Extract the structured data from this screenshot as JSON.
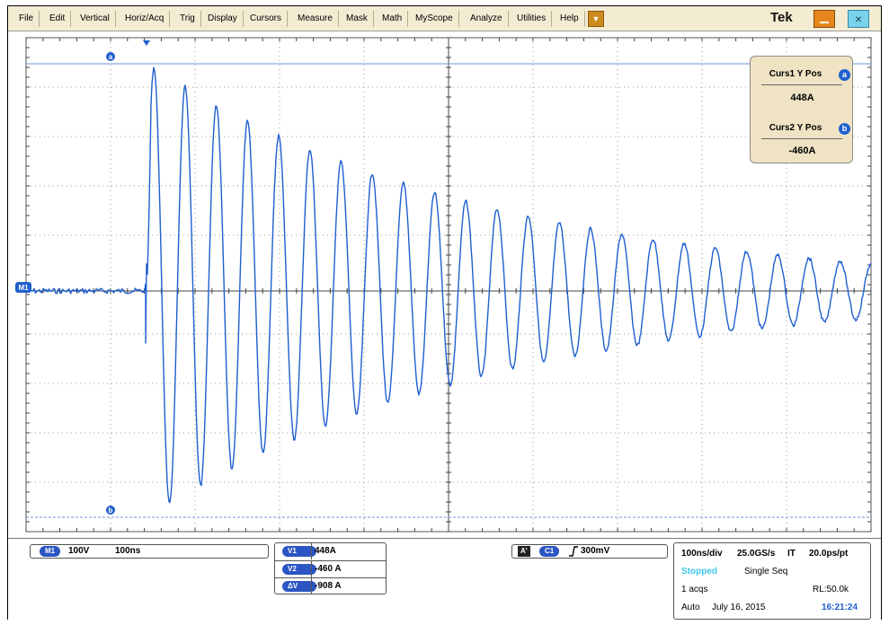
{
  "menu": {
    "items": [
      "File",
      "Edit",
      "Vertical",
      "Horiz/Acq",
      "Trig",
      "Display",
      "Cursors",
      "Measure",
      "Mask",
      "Math",
      "MyScope",
      "Analyze",
      "Utilities",
      "Help"
    ],
    "arrow_icon": "dropdown-triangle-icon"
  },
  "brand": "Tek",
  "window_buttons": {
    "minimize_icon": "minimize-icon",
    "close_icon": "close-icon",
    "close_glyph": "×"
  },
  "waveform": {
    "color": "#1f5fcf",
    "math_marker_label": "M1",
    "cursor_a_label": "a",
    "cursor_b_label": "b"
  },
  "cursor_panel": {
    "curs1_label": "Curs1 Y Pos",
    "curs1_badge": "a",
    "curs1_value": "448A",
    "curs2_label": "Curs2 Y Pos",
    "curs2_badge": "b",
    "curs2_value": "-460A"
  },
  "readout": {
    "channel": {
      "badge": "M1",
      "scale": "100V",
      "timebase": "100ns"
    },
    "cursors": [
      {
        "badge": "V1",
        "value": "448A"
      },
      {
        "badge": "V2",
        "value": "-460 A"
      },
      {
        "badge": "ΔV",
        "value": "-908 A"
      }
    ],
    "trigger": {
      "mode_badge": "A'",
      "source_badge": "C1",
      "slope_icon": "rising-edge-icon",
      "level": "300mV"
    },
    "acquisition": {
      "horizontal": "100ns/div",
      "sample_rate": "25.0GS/s",
      "mode": "IT",
      "resolution": "20.0ps/pt",
      "state": "Stopped",
      "sequence": "Single Seq",
      "acqs": "1 acqs",
      "record_length": "RL:50.0k",
      "trigger_mode": "Auto",
      "date": "July 16, 2015",
      "time": "16:21:24",
      "state_color": "#3fc4e8",
      "time_color": "#1f5fcf"
    }
  }
}
